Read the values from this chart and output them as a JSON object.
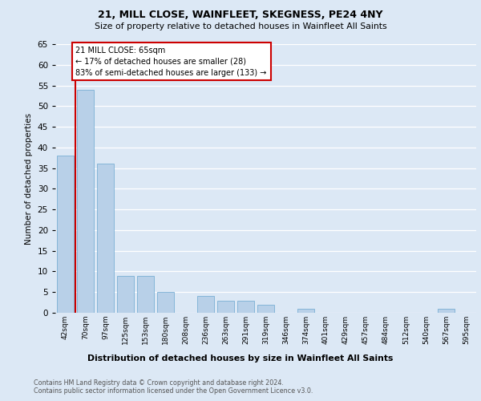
{
  "title1": "21, MILL CLOSE, WAINFLEET, SKEGNESS, PE24 4NY",
  "title2": "Size of property relative to detached houses in Wainfleet All Saints",
  "xlabel": "Distribution of detached houses by size in Wainfleet All Saints",
  "ylabel": "Number of detached properties",
  "categories": [
    "42sqm",
    "70sqm",
    "97sqm",
    "125sqm",
    "153sqm",
    "180sqm",
    "208sqm",
    "236sqm",
    "263sqm",
    "291sqm",
    "319sqm",
    "346sqm",
    "374sqm",
    "401sqm",
    "429sqm",
    "457sqm",
    "484sqm",
    "512sqm",
    "540sqm",
    "567sqm",
    "595sqm"
  ],
  "values": [
    38,
    54,
    36,
    9,
    9,
    5,
    0,
    4,
    3,
    3,
    2,
    0,
    1,
    0,
    0,
    0,
    0,
    0,
    0,
    1,
    0
  ],
  "bar_color": "#b8d0e8",
  "bar_edge_color": "#7aafd4",
  "marker_label": "21 MILL CLOSE: 65sqm",
  "annotation_line1": "← 17% of detached houses are smaller (28)",
  "annotation_line2": "83% of semi-detached houses are larger (133) →",
  "annotation_box_color": "#ffffff",
  "annotation_box_edge": "#cc0000",
  "marker_line_color": "#cc0000",
  "ylim": [
    0,
    65
  ],
  "yticks": [
    0,
    5,
    10,
    15,
    20,
    25,
    30,
    35,
    40,
    45,
    50,
    55,
    60,
    65
  ],
  "footer1": "Contains HM Land Registry data © Crown copyright and database right 2024.",
  "footer2": "Contains public sector information licensed under the Open Government Licence v3.0.",
  "bg_color": "#dce8f5",
  "plot_bg_color": "#dce8f5"
}
